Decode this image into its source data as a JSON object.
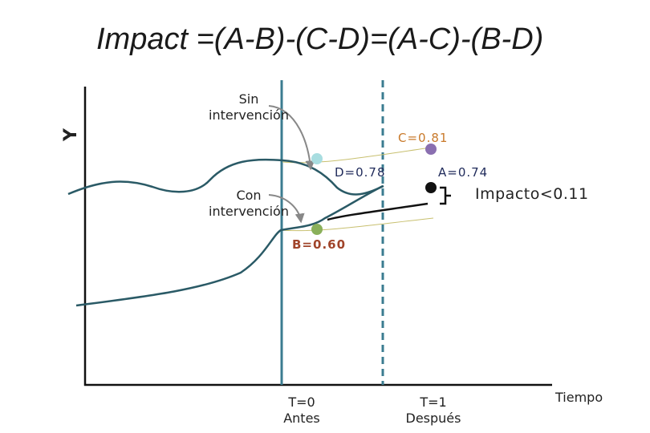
{
  "title": "Impact =(A-B)-(C-D)=(A-C)-(B-D)",
  "axes": {
    "y_label": "Y",
    "x_label": "Tiempo"
  },
  "annotations": {
    "sin_intervencion": [
      "Sin",
      "intervención"
    ],
    "con_intervencion": [
      "Con",
      "intervención"
    ]
  },
  "points": {
    "C": {
      "label": "C=0.81",
      "color": "#8a6fb0",
      "label_color": "#c97a2b"
    },
    "D": {
      "label": "D=0.78",
      "color": "#a8dde0",
      "label_color": "#1f2a5a"
    },
    "A": {
      "label": "A=0.74",
      "color": "#111111",
      "label_color": "#1f2a5a"
    },
    "B": {
      "label": "B=0.60",
      "color": "#8ab05a",
      "label_color": "#a0442a"
    }
  },
  "impact": {
    "label": "Impacto<0.11"
  },
  "time_markers": [
    {
      "line1": "T=0",
      "line2": "Antes"
    },
    {
      "line1": "T=1",
      "line2": "Después"
    }
  ],
  "colors": {
    "curve": "#2a5a66",
    "axis": "#111111",
    "guide": "#c8c070",
    "arrow": "#888888"
  }
}
